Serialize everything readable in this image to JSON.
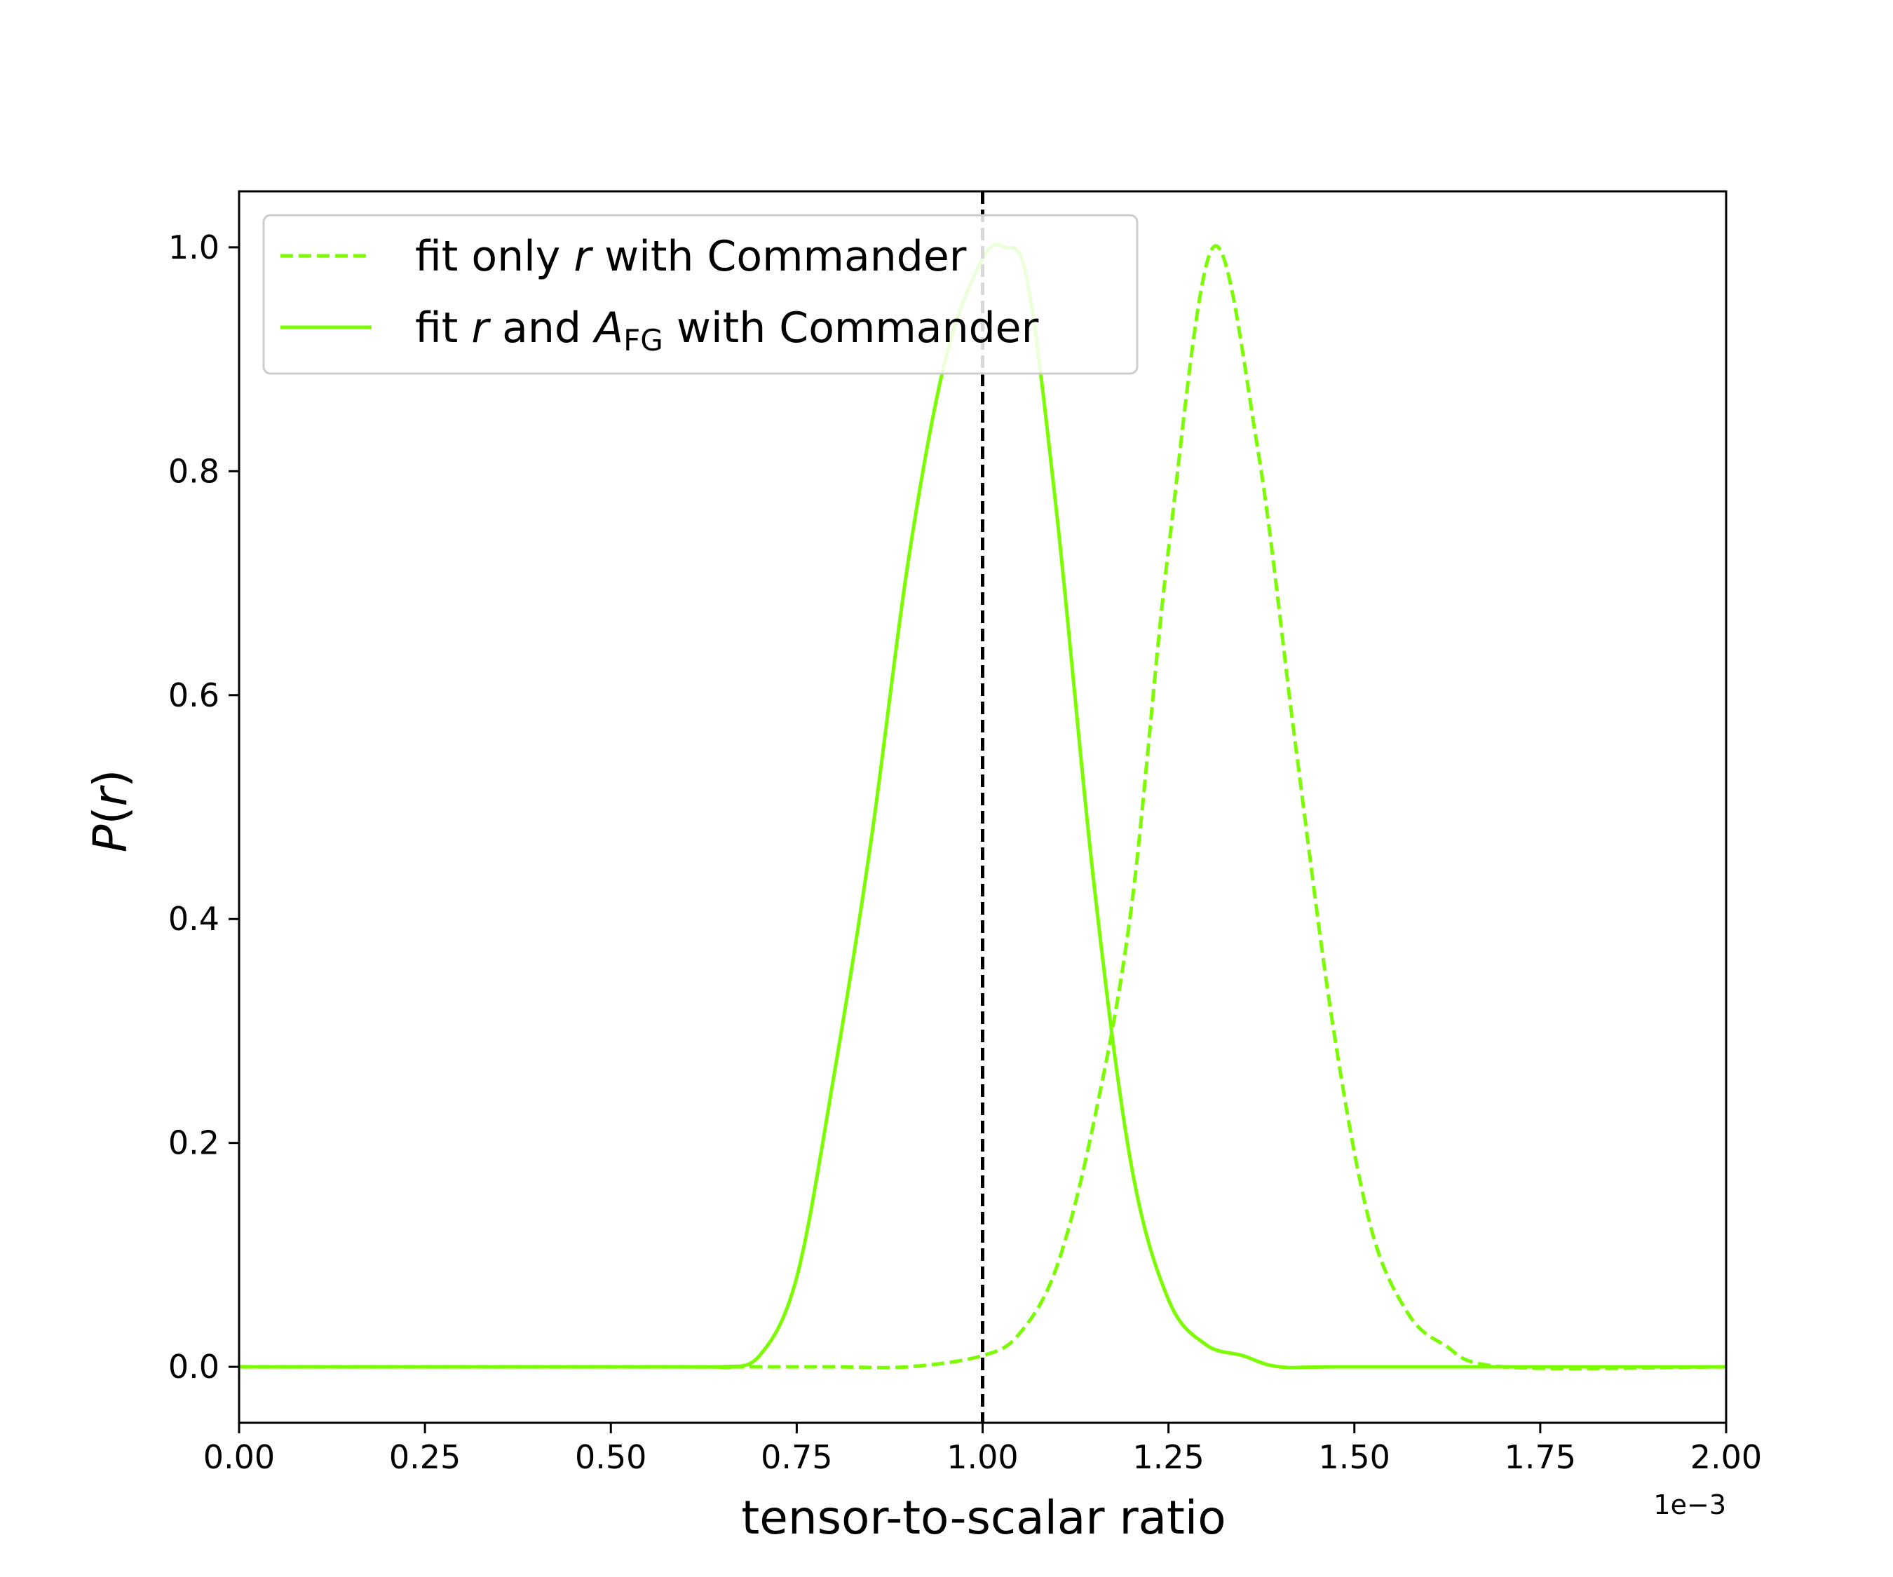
{
  "chart_data": {
    "type": "line",
    "title": "",
    "xlabel": "tensor-to-scalar ratio",
    "ylabel_parts": {
      "italic": "P",
      "open": "(",
      "var": "r",
      "close": ")"
    },
    "x_offset_label": "1e−3",
    "xlim": [
      0.0,
      2.0
    ],
    "ylim": [
      -0.05,
      1.05
    ],
    "x_ticks": [
      0.0,
      0.25,
      0.5,
      0.75,
      1.0,
      1.25,
      1.5,
      1.75,
      2.0
    ],
    "x_tick_labels": [
      "0.00",
      "0.25",
      "0.50",
      "0.75",
      "1.00",
      "1.25",
      "1.50",
      "1.75",
      "2.00"
    ],
    "y_ticks": [
      0.0,
      0.2,
      0.4,
      0.6,
      0.8,
      1.0
    ],
    "y_tick_labels": [
      "0.0",
      "0.2",
      "0.4",
      "0.6",
      "0.8",
      "1.0"
    ],
    "grid": false,
    "legend_position": "top-left",
    "reference_line": {
      "x": 1.0,
      "style": "dashed",
      "color": "#000000"
    },
    "series": [
      {
        "legend": {
          "pre": "fit only ",
          "var": "r",
          "post": " with Commander"
        },
        "style": "dashed",
        "color": "#7CFC00",
        "x": [
          0.0,
          0.6,
          0.7,
          0.8,
          0.9,
          1.0,
          1.05,
          1.1,
          1.15,
          1.2,
          1.25,
          1.31,
          1.37,
          1.42,
          1.47,
          1.52,
          1.57,
          1.62,
          1.7,
          2.0
        ],
        "values": [
          0.0,
          0.0,
          0.0,
          0.0,
          0.0,
          0.01,
          0.03,
          0.09,
          0.22,
          0.41,
          0.73,
          1.0,
          0.82,
          0.56,
          0.31,
          0.13,
          0.05,
          0.02,
          0.0,
          0.0
        ]
      },
      {
        "legend": {
          "pre": "fit ",
          "var": "r",
          "mid": " and ",
          "sym": "A",
          "sub": "FG",
          "post": " with Commander"
        },
        "style": "solid",
        "color": "#7CFC00",
        "x": [
          0.0,
          0.6,
          0.65,
          0.7,
          0.75,
          0.8,
          0.85,
          0.9,
          0.95,
          1.0,
          1.03,
          1.06,
          1.1,
          1.15,
          1.2,
          1.25,
          1.3,
          1.35,
          1.4,
          1.5,
          2.0
        ],
        "values": [
          0.0,
          0.0,
          0.0,
          0.01,
          0.08,
          0.26,
          0.47,
          0.72,
          0.9,
          0.99,
          1.0,
          0.97,
          0.76,
          0.43,
          0.18,
          0.06,
          0.02,
          0.01,
          0.0,
          0.0,
          0.0
        ]
      }
    ]
  }
}
